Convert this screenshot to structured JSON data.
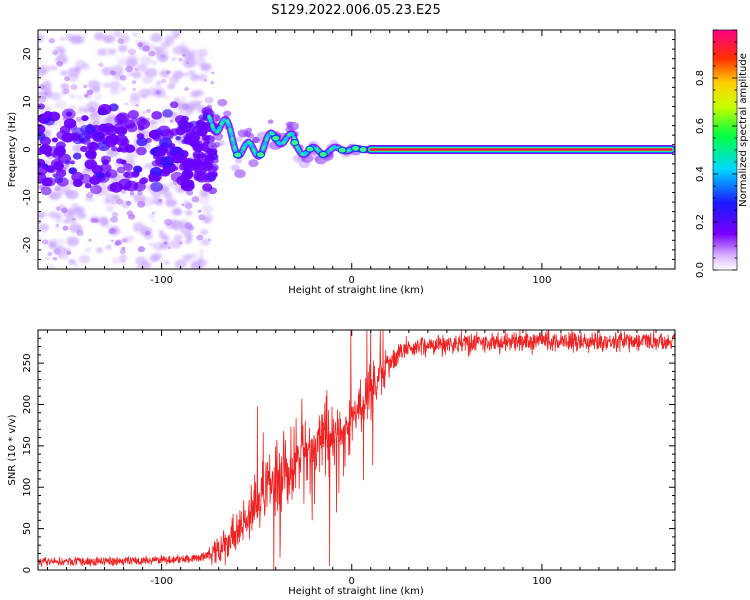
{
  "title": "S129.2022.006.05.23.E25",
  "colors": {
    "snr_line": "#ee2222",
    "blob": "#6a00ff",
    "blob_light": "#c9a6ff",
    "straight_line": "#e8007a"
  },
  "chart_data": [
    {
      "type": "heatmap",
      "xlabel": "Height of straight line (km)",
      "ylabel": "Frequency (Hz)",
      "xlim": [
        -165,
        170
      ],
      "ylim": [
        -25,
        25
      ],
      "xticks": [
        -100,
        0,
        100
      ],
      "xtick_labels": [
        "-100",
        "0",
        "100"
      ],
      "yticks": [
        -20,
        -10,
        0,
        10,
        20
      ],
      "ytick_labels": [
        "-20",
        "-10",
        "0",
        "10",
        "20"
      ],
      "colorbar": {
        "label": "Normalized spectral amplitude",
        "range": [
          0,
          1
        ],
        "ticks": [
          0.0,
          0.2,
          0.4,
          0.6,
          0.8
        ],
        "tick_labels": [
          "0.0",
          "0.2",
          "0.4",
          "0.6",
          "0.8"
        ],
        "colormap": "rainbow (white-violet-blue-cyan-green-yellow-red-magenta)"
      },
      "features": {
        "diffuse_noise_x_range": [
          -165,
          -80
        ],
        "strong_band_center_hz": 0,
        "transition_x_range": [
          -75,
          10
        ],
        "straight_line_x_range": [
          10,
          168
        ],
        "straight_line_frequency_hz": 0,
        "straight_line_amplitude": 0.92
      }
    },
    {
      "type": "line",
      "xlabel": "Height of straight line (km)",
      "ylabel": "SNR (10 * v/v)",
      "xlim": [
        -165,
        170
      ],
      "ylim": [
        0,
        290
      ],
      "xticks": [
        -100,
        0,
        100
      ],
      "xtick_labels": [
        "-100",
        "0",
        "100"
      ],
      "yticks": [
        0,
        50,
        100,
        150,
        200,
        250
      ],
      "ytick_labels": [
        "0",
        "50",
        "100",
        "150",
        "200",
        "250"
      ],
      "series": [
        {
          "x": [
            -165,
            -140,
            -120,
            -100,
            -90,
            -80,
            -75,
            -70,
            -65,
            -60,
            -55,
            -50,
            -45,
            -40,
            -35,
            -30,
            -25,
            -20,
            -15,
            -10,
            -5,
            0,
            5,
            10,
            15,
            20,
            25,
            30,
            40,
            50,
            60,
            80,
            100,
            120,
            140,
            160,
            170
          ],
          "y": [
            10,
            10,
            11,
            12,
            13,
            15,
            18,
            22,
            30,
            45,
            60,
            80,
            95,
            110,
            125,
            135,
            145,
            150,
            160,
            165,
            170,
            180,
            195,
            215,
            235,
            250,
            262,
            268,
            272,
            273,
            274,
            275,
            276,
            276,
            277,
            277,
            277
          ]
        }
      ]
    }
  ]
}
